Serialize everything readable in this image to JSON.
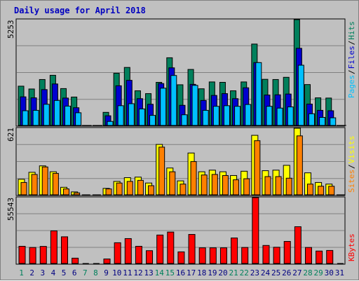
{
  "title": "Daily usage for April 2018",
  "colors": {
    "hits": "#00805c",
    "files": "#0000d0",
    "pages": "#00c0ff",
    "visits": "#ffff00",
    "sites": "#ff8000",
    "kbytes": "#ff0000",
    "weekend_label": "#00805c",
    "weekday_label": "#000080"
  },
  "chart_data": [
    {
      "type": "bar",
      "name": "hits-files-pages",
      "ylabel_max": "5253",
      "ylim": [
        0,
        5253
      ],
      "legend": [
        {
          "key": "hits",
          "label": "Hits"
        },
        {
          "key": "files",
          "label": "Files"
        },
        {
          "key": "pages",
          "label": "Pages"
        }
      ],
      "categories": [
        "1",
        "2",
        "3",
        "4",
        "5",
        "6",
        "7",
        "8",
        "9",
        "10",
        "11",
        "12",
        "13",
        "14",
        "15",
        "16",
        "17",
        "18",
        "19",
        "20",
        "21",
        "22",
        "23",
        "24",
        "25",
        "26",
        "27",
        "28",
        "29",
        "30",
        "31"
      ],
      "series": [
        {
          "name": "Hits",
          "values": [
            1950,
            1810,
            2280,
            2490,
            1830,
            1410,
            0,
            0,
            650,
            2590,
            2880,
            1720,
            1580,
            2140,
            3360,
            2020,
            2780,
            1820,
            2160,
            2140,
            1720,
            2160,
            4040,
            2290,
            2280,
            2390,
            5253,
            2030,
            1370,
            1360,
            0
          ]
        },
        {
          "name": "Files",
          "values": [
            1420,
            1370,
            1780,
            2060,
            1360,
            880,
            0,
            0,
            480,
            1970,
            2240,
            1330,
            1050,
            2080,
            2860,
            1000,
            2040,
            1240,
            1490,
            1580,
            1330,
            1870,
            3120,
            1510,
            1520,
            1560,
            3830,
            1060,
            750,
            730,
            0
          ]
        },
        {
          "name": "Pages",
          "values": [
            730,
            750,
            1050,
            1240,
            960,
            630,
            0,
            0,
            200,
            980,
            1080,
            820,
            500,
            1850,
            2480,
            530,
            1990,
            750,
            950,
            980,
            950,
            1040,
            3120,
            950,
            860,
            920,
            2990,
            580,
            400,
            380,
            0
          ]
        }
      ]
    },
    {
      "type": "bar",
      "name": "visits-sites",
      "ylabel_max": "621",
      "ylim": [
        0,
        621
      ],
      "legend": [
        {
          "key": "visits",
          "label": "Visits"
        },
        {
          "key": "sites",
          "label": "Sites"
        }
      ],
      "categories": [
        "1",
        "2",
        "3",
        "4",
        "5",
        "6",
        "7",
        "8",
        "9",
        "10",
        "11",
        "12",
        "13",
        "14",
        "15",
        "16",
        "17",
        "18",
        "19",
        "20",
        "21",
        "22",
        "23",
        "24",
        "25",
        "26",
        "27",
        "28",
        "29",
        "30",
        "31"
      ],
      "series": [
        {
          "name": "Visits",
          "values": [
            145,
            210,
            270,
            215,
            70,
            27,
            0,
            0,
            60,
            125,
            160,
            165,
            110,
            470,
            250,
            130,
            390,
            215,
            230,
            215,
            180,
            220,
            555,
            225,
            230,
            275,
            621,
            205,
            115,
            100,
            0
          ]
        },
        {
          "name": "Sites",
          "values": [
            115,
            190,
            260,
            200,
            55,
            18,
            0,
            0,
            55,
            110,
            125,
            135,
            85,
            445,
            215,
            100,
            310,
            185,
            190,
            180,
            140,
            150,
            505,
            170,
            170,
            155,
            550,
            100,
            80,
            80,
            0
          ]
        }
      ]
    },
    {
      "type": "bar",
      "name": "kbytes",
      "ylabel_max": "55543",
      "ylim": [
        0,
        55543
      ],
      "legend": [
        {
          "key": "kbytes",
          "label": "KBytes"
        }
      ],
      "categories": [
        "1",
        "2",
        "3",
        "4",
        "5",
        "6",
        "7",
        "8",
        "9",
        "10",
        "11",
        "12",
        "13",
        "14",
        "15",
        "16",
        "17",
        "18",
        "19",
        "20",
        "21",
        "22",
        "23",
        "24",
        "25",
        "26",
        "27",
        "28",
        "29",
        "30",
        "31"
      ],
      "series": [
        {
          "name": "KBytes",
          "values": [
            14500,
            13500,
            14400,
            27500,
            22500,
            4500,
            0,
            0,
            3800,
            17500,
            21000,
            14500,
            10800,
            24000,
            26500,
            9800,
            24500,
            13200,
            13200,
            13200,
            21500,
            13500,
            55543,
            15200,
            13700,
            18600,
            31000,
            13500,
            10500,
            11000,
            0
          ]
        }
      ]
    }
  ],
  "x_labels": [
    {
      "text": "1",
      "weekend": true
    },
    {
      "text": "2",
      "weekend": false
    },
    {
      "text": "3",
      "weekend": false
    },
    {
      "text": "4",
      "weekend": false
    },
    {
      "text": "5",
      "weekend": false
    },
    {
      "text": "6",
      "weekend": false
    },
    {
      "text": "7",
      "weekend": true
    },
    {
      "text": "8",
      "weekend": true
    },
    {
      "text": "9",
      "weekend": false
    },
    {
      "text": "10",
      "weekend": false
    },
    {
      "text": "11",
      "weekend": false
    },
    {
      "text": "12",
      "weekend": false
    },
    {
      "text": "13",
      "weekend": false
    },
    {
      "text": "14",
      "weekend": true
    },
    {
      "text": "15",
      "weekend": true
    },
    {
      "text": "16",
      "weekend": false
    },
    {
      "text": "17",
      "weekend": false
    },
    {
      "text": "18",
      "weekend": false
    },
    {
      "text": "19",
      "weekend": false
    },
    {
      "text": "20",
      "weekend": false
    },
    {
      "text": "21",
      "weekend": true
    },
    {
      "text": "22",
      "weekend": true
    },
    {
      "text": "23",
      "weekend": false
    },
    {
      "text": "24",
      "weekend": false
    },
    {
      "text": "25",
      "weekend": false
    },
    {
      "text": "26",
      "weekend": false
    },
    {
      "text": "27",
      "weekend": false
    },
    {
      "text": "28",
      "weekend": true
    },
    {
      "text": "29",
      "weekend": true
    },
    {
      "text": "30",
      "weekend": false
    },
    {
      "text": "31",
      "weekend": false
    }
  ]
}
